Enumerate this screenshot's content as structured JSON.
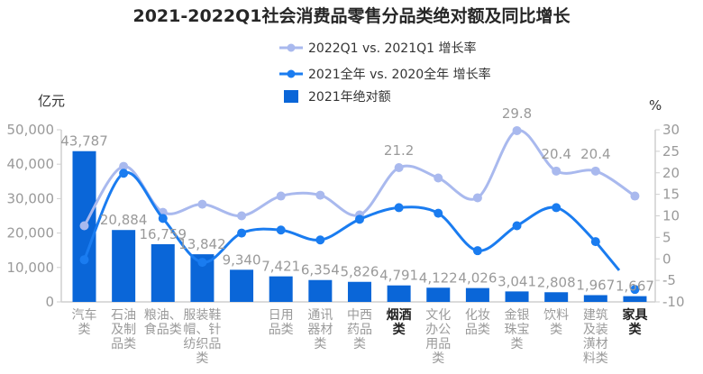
{
  "chart_data": {
    "type": "bar+line",
    "title": "2021-2022Q1社会消费品零售分品类绝对额及同比增长",
    "left_unit": "亿元",
    "right_unit": "%",
    "left_ylim": [
      0,
      50000
    ],
    "left_ticks": [
      "0",
      "10,000",
      "20,000",
      "30,000",
      "40,000",
      "50,000"
    ],
    "right_ylim": [
      -10,
      30
    ],
    "right_ticks": [
      "-10",
      "-5",
      "0",
      "5",
      "10",
      "15",
      "20",
      "25",
      "30"
    ],
    "legend_position": "top-center",
    "colors": {
      "bar": "#0a66d8",
      "line_2021": "#1a7cf0",
      "line_2022q1": "#a9b9ee"
    },
    "categories": [
      {
        "lines": [
          "汽车",
          "类"
        ],
        "highlight": false
      },
      {
        "lines": [
          "石油",
          "及制",
          "品类"
        ],
        "highlight": false
      },
      {
        "lines": [
          "粮油、",
          "食品类"
        ],
        "highlight": false
      },
      {
        "lines": [
          "服装鞋",
          "帽、针",
          "纺织品",
          "类"
        ],
        "highlight": false
      },
      {
        "lines": [],
        "highlight": false
      },
      {
        "lines": [
          "日用",
          "品类"
        ],
        "highlight": false
      },
      {
        "lines": [
          "通讯",
          "器材",
          "类"
        ],
        "highlight": false
      },
      {
        "lines": [
          "中西",
          "药品",
          "类"
        ],
        "highlight": false
      },
      {
        "lines": [
          "烟酒",
          "类"
        ],
        "highlight": true
      },
      {
        "lines": [
          "文化",
          "办公",
          "用品",
          "类"
        ],
        "highlight": false
      },
      {
        "lines": [
          "化妆",
          "品类"
        ],
        "highlight": false
      },
      {
        "lines": [
          "金银",
          "珠宝",
          "类"
        ],
        "highlight": false
      },
      {
        "lines": [
          "饮料",
          "类"
        ],
        "highlight": false
      },
      {
        "lines": [
          "建筑",
          "及装",
          "潢材",
          "料类"
        ],
        "highlight": false
      },
      {
        "lines": [
          "家具",
          "类"
        ],
        "highlight": true
      }
    ],
    "series": [
      {
        "name": "2021年绝对额",
        "kind": "bar",
        "axis": "left",
        "values": [
          43787,
          20884,
          16759,
          13842,
          9340,
          7421,
          6354,
          5826,
          4791,
          4122,
          4026,
          3041,
          2808,
          1967,
          1667
        ],
        "labels": [
          "43,787",
          "20,884",
          "16,759",
          "13,842",
          "9,340",
          "7,421",
          "6,354",
          "5,826",
          "4,791",
          "4,122",
          "4,026",
          "3,041",
          "2,808",
          "1,967",
          "1,667"
        ]
      },
      {
        "name": "2022Q1 vs. 2021Q1 增长率",
        "kind": "line",
        "axis": "right",
        "values": [
          7.7,
          21.5,
          10.8,
          12.7,
          10.0,
          14.6,
          14.8,
          10.2,
          21.2,
          18.8,
          14.2,
          29.8,
          20.4,
          20.4,
          14.6
        ],
        "labels": [
          null,
          null,
          null,
          null,
          null,
          null,
          null,
          null,
          "21.2",
          null,
          null,
          "29.8",
          "20.4",
          "20.4",
          null
        ]
      },
      {
        "name": "2021全年 vs. 2020全年 增长率",
        "kind": "line",
        "axis": "right",
        "values": [
          -0.2,
          19.9,
          9.4,
          -0.8,
          6.0,
          6.7,
          4.4,
          9.2,
          11.9,
          10.6,
          1.9,
          7.7,
          11.9,
          4.0,
          -7.1
        ]
      }
    ]
  }
}
